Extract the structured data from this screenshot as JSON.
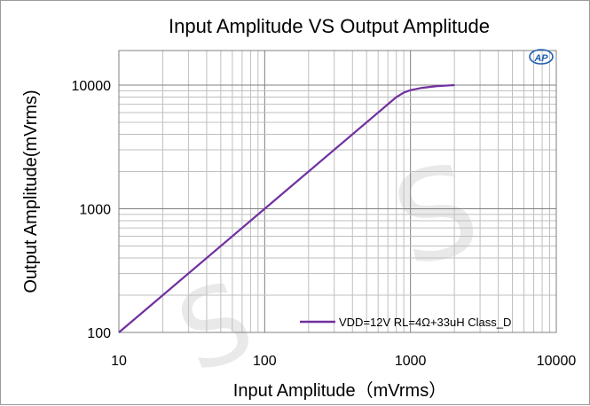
{
  "chart_data": {
    "type": "line",
    "title": "Input Amplitude VS Output Amplitude",
    "xlabel": "Input  Amplitude（mVrms）",
    "ylabel": "Output Amplitude(mVrms)",
    "xscale": "log",
    "yscale": "log",
    "xlim": [
      10,
      10000
    ],
    "ylim": [
      100,
      10000
    ],
    "x_ticks": [
      "10",
      "100",
      "1000",
      "10000"
    ],
    "y_ticks": [
      "100",
      "1000",
      "10000"
    ],
    "grid": true,
    "legend_position": "bottom-right",
    "series": [
      {
        "name": "VDD=12V RL=4Ω+33uH Class_D",
        "color": "#7030a0",
        "x": [
          10,
          100,
          700,
          800,
          900,
          1000,
          1200,
          1500,
          2000
        ],
        "y": [
          100,
          1000,
          7000,
          8000,
          8700,
          9100,
          9500,
          9800,
          10000
        ]
      }
    ]
  },
  "logo_text": "AP"
}
